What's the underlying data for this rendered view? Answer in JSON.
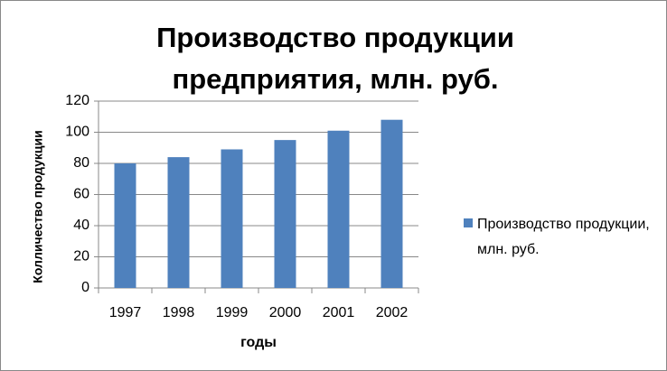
{
  "chart_data": {
    "type": "bar",
    "title": "Производство продукции предприятия, млн. руб.",
    "x_label": "годы",
    "y_label": "Колличество продукции",
    "categories": [
      "1997",
      "1998",
      "1999",
      "2000",
      "2001",
      "2002"
    ],
    "series": [
      {
        "name": "Производство продукции, млн. руб.",
        "color": "#4f81bd",
        "values": [
          80,
          84,
          89,
          95,
          101,
          108
        ]
      }
    ],
    "ylim": [
      0,
      120
    ],
    "yticks": [
      0,
      20,
      40,
      60,
      80,
      100,
      120
    ],
    "grid": true,
    "legend": "right"
  }
}
